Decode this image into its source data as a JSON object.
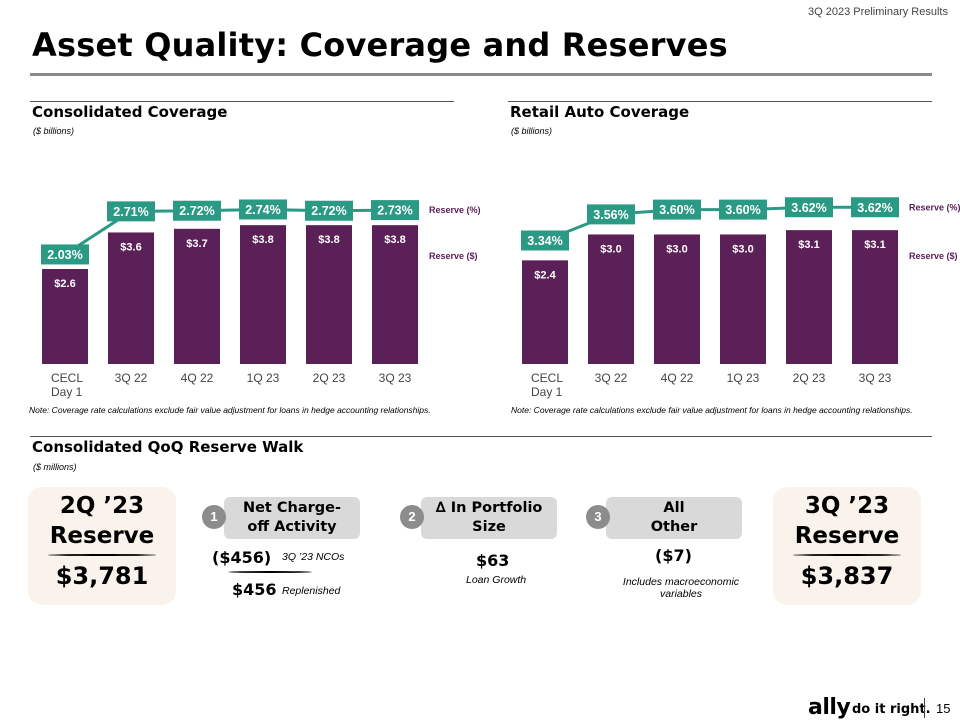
{
  "header": {
    "tag": "3Q 2023 Preliminary Results",
    "title": "Asset Quality: Coverage and Reserves"
  },
  "consolidated": {
    "title": "Consolidated Coverage",
    "units": "($ billions)",
    "note": "Note: Coverage rate calculations exclude fair value adjustment for loans in hedge accounting relationships.",
    "legend_pct": "Reserve (%)",
    "legend_dollar": "Reserve ($)"
  },
  "retail": {
    "title": "Retail Auto Coverage",
    "units": "($ billions)",
    "note": "Note: Coverage rate calculations exclude fair value adjustment for loans in hedge accounting relationships.",
    "legend_pct": "Reserve (%)",
    "legend_dollar": "Reserve ($)"
  },
  "chart_data": [
    {
      "type": "bar",
      "title": "Consolidated Coverage",
      "categories": [
        "CECL Day 1",
        "3Q 22",
        "4Q 22",
        "1Q 23",
        "2Q 23",
        "3Q 23"
      ],
      "values": [
        2.6,
        3.6,
        3.7,
        3.8,
        3.8,
        3.8
      ],
      "value_labels": [
        "$2.6",
        "$3.6",
        "$3.7",
        "$3.8",
        "$3.8",
        "$3.8"
      ],
      "line_values": [
        2.03,
        2.71,
        2.72,
        2.74,
        2.72,
        2.73
      ],
      "line_labels": [
        "2.03%",
        "2.71%",
        "2.72%",
        "2.74%",
        "2.72%",
        "2.73%"
      ],
      "series": [
        {
          "name": "Reserve ($)",
          "values": [
            2.6,
            3.6,
            3.7,
            3.8,
            3.8,
            3.8
          ]
        },
        {
          "name": "Reserve (%)",
          "values": [
            2.03,
            2.71,
            2.72,
            2.74,
            2.72,
            2.73
          ]
        }
      ],
      "ylim": [
        0,
        5.2
      ],
      "line_ylim": [
        0.3,
        3.3
      ],
      "colors": {
        "bar": "#5c2059",
        "line": "#2a9a84"
      }
    },
    {
      "type": "bar",
      "title": "Retail Auto Coverage",
      "categories": [
        "CECL Day 1",
        "3Q 22",
        "4Q 22",
        "1Q 23",
        "2Q 23",
        "3Q 23"
      ],
      "values": [
        2.4,
        3.0,
        3.0,
        3.0,
        3.1,
        3.1
      ],
      "value_labels": [
        "$2.4",
        "$3.0",
        "$3.0",
        "$3.0",
        "$3.1",
        "$3.1"
      ],
      "line_values": [
        3.34,
        3.56,
        3.6,
        3.6,
        3.62,
        3.62
      ],
      "line_labels": [
        "3.34%",
        "3.56%",
        "3.60%",
        "3.60%",
        "3.62%",
        "3.62%"
      ],
      "series": [
        {
          "name": "Reserve ($)",
          "values": [
            2.4,
            3.0,
            3.0,
            3.0,
            3.1,
            3.1
          ]
        },
        {
          "name": "Reserve (%)",
          "values": [
            3.34,
            3.56,
            3.6,
            3.6,
            3.62,
            3.62
          ]
        }
      ],
      "ylim": [
        0,
        4.4
      ],
      "line_ylim": [
        2.3,
        3.9
      ],
      "colors": {
        "bar": "#5c2059",
        "line": "#2a9a84"
      }
    }
  ],
  "walk": {
    "title": "Consolidated QoQ Reserve Walk",
    "units": "($ millions)",
    "start": {
      "title_line1": "2Q ’23",
      "title_line2": "Reserve",
      "value": "$3,781"
    },
    "end": {
      "title_line1": "3Q ’23",
      "title_line2": "Reserve",
      "value": "$3,837"
    },
    "steps": [
      {
        "num": "1",
        "line1": "Net Charge-",
        "line2": "off Activity"
      },
      {
        "num": "2",
        "line1": "∆ In Portfolio",
        "line2": "Size"
      },
      {
        "num": "3",
        "line1": "All",
        "line2": "Other"
      }
    ],
    "nco_value": "($456)",
    "nco_label": "3Q ’23 NCOs",
    "replenished_value": "$456",
    "replenished_label": "Replenished",
    "portfolio_value": "$63",
    "portfolio_label": "Loan Growth",
    "other_value": "($7)",
    "other_label_line1": "Includes macroeconomic",
    "other_label_line2": "variables"
  },
  "footer": {
    "logo": "ally",
    "tagline": "do it right.",
    "page": "15"
  }
}
